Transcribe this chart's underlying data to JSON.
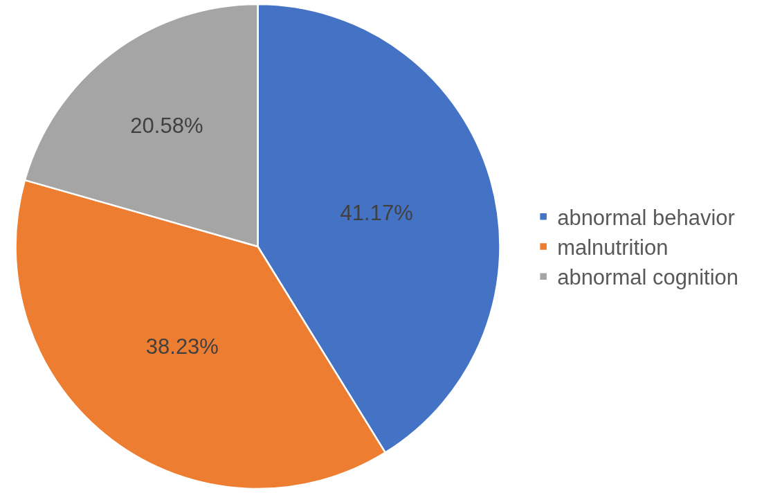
{
  "chart_data": {
    "type": "pie",
    "categories": [
      "abnormal behavior",
      "malnutrition",
      "abnormal cognition"
    ],
    "values": [
      41.17,
      38.23,
      20.58
    ],
    "colors": [
      "#4472c4",
      "#ed7d31",
      "#a5a5a5"
    ],
    "value_labels": [
      "41.17%",
      "38.23%",
      "20.58%"
    ],
    "legend": "right"
  }
}
